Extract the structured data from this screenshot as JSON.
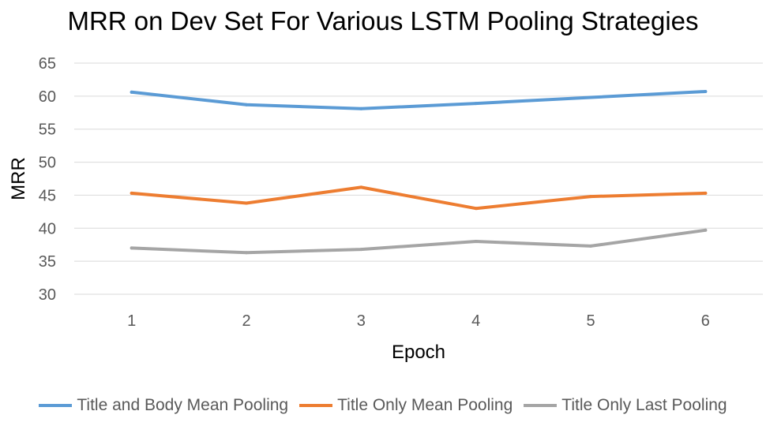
{
  "chart_data": {
    "type": "line",
    "title": "MRR on Dev Set For Various LSTM Pooling Strategies",
    "xlabel": "Epoch",
    "ylabel": "MRR",
    "categories": [
      "1",
      "2",
      "3",
      "4",
      "5",
      "6"
    ],
    "ylim": [
      30,
      65
    ],
    "yticks": [
      30,
      35,
      40,
      45,
      50,
      55,
      60,
      65
    ],
    "grid": true,
    "legend_position": "bottom",
    "series": [
      {
        "name": "Title and Body Mean Pooling",
        "color": "#5B9BD5",
        "values": [
          60.6,
          58.7,
          58.1,
          58.9,
          59.8,
          60.7
        ]
      },
      {
        "name": "Title Only Mean Pooling",
        "color": "#ED7D31",
        "values": [
          45.3,
          43.8,
          46.2,
          43.0,
          44.8,
          45.3
        ]
      },
      {
        "name": "Title Only Last Pooling",
        "color": "#A5A5A5",
        "values": [
          37.0,
          36.3,
          36.8,
          38.0,
          37.3,
          39.7
        ]
      }
    ]
  }
}
